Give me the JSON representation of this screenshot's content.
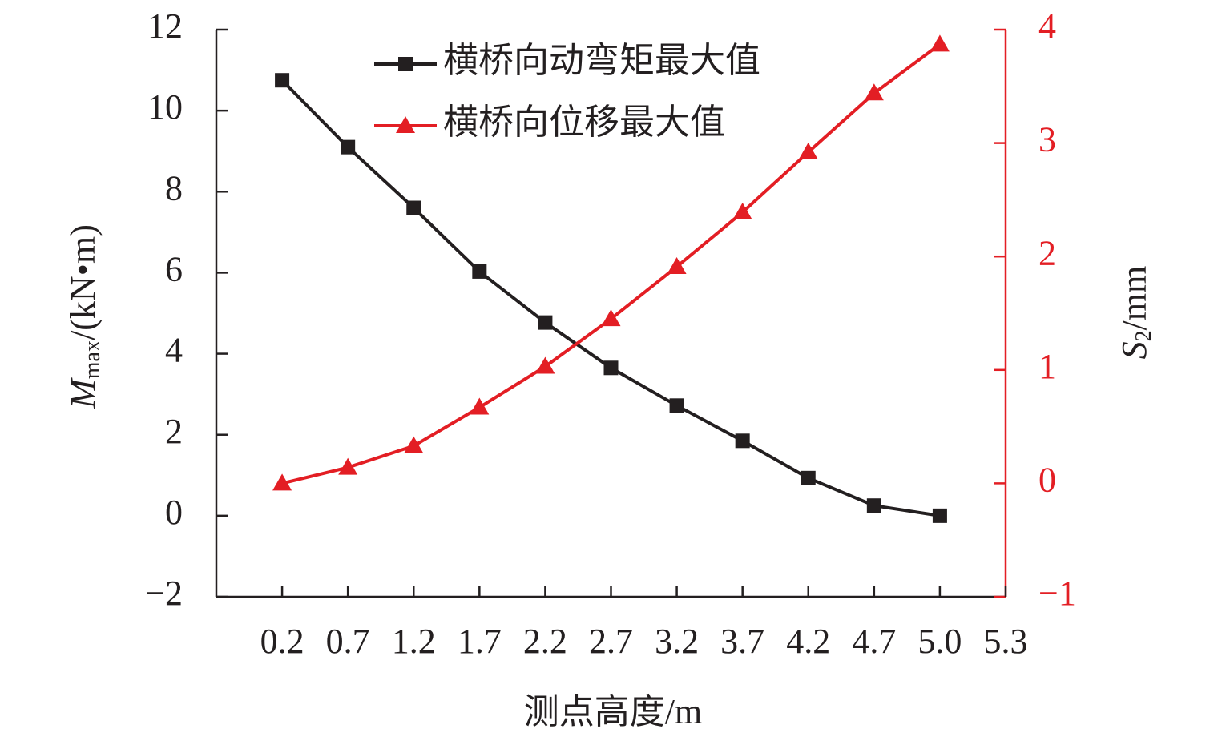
{
  "chart_data": {
    "type": "line",
    "categories": [
      "0.2",
      "0.7",
      "1.2",
      "1.7",
      "2.2",
      "2.7",
      "3.2",
      "3.7",
      "4.2",
      "4.7",
      "5.0",
      "5.3"
    ],
    "series": [
      {
        "name": "横桥向动弯矩最大值",
        "color": "#231f20",
        "marker": "square",
        "axis": "y",
        "values": [
          10.75,
          9.1,
          7.6,
          6.03,
          4.77,
          3.65,
          2.72,
          1.85,
          0.93,
          0.25,
          0.0,
          null
        ]
      },
      {
        "name": "横桥向位移最大值",
        "color": "#e31e24",
        "marker": "triangle",
        "axis": "y2",
        "values": [
          0.0,
          0.14,
          0.33,
          0.67,
          1.03,
          1.45,
          1.91,
          2.39,
          2.92,
          3.44,
          3.87,
          null
        ]
      }
    ],
    "xlabel": "测点高度/m",
    "ylabel": {
      "main": "M",
      "sub": "max",
      "rest": "/(kN•m)"
    },
    "y2label": {
      "main": "S",
      "sub": "2",
      "rest": "/mm"
    },
    "ylim": [
      -2,
      12
    ],
    "yticks": [
      {
        "value": -2,
        "label": "−2"
      },
      0,
      2,
      4,
      6,
      8,
      10,
      12
    ],
    "y2lim": [
      -1,
      4
    ],
    "y2ticks": [
      {
        "value": -1,
        "label": "−1"
      },
      0,
      1,
      2,
      3,
      4
    ],
    "y2color": "#e31e24",
    "legend": "upper center"
  }
}
